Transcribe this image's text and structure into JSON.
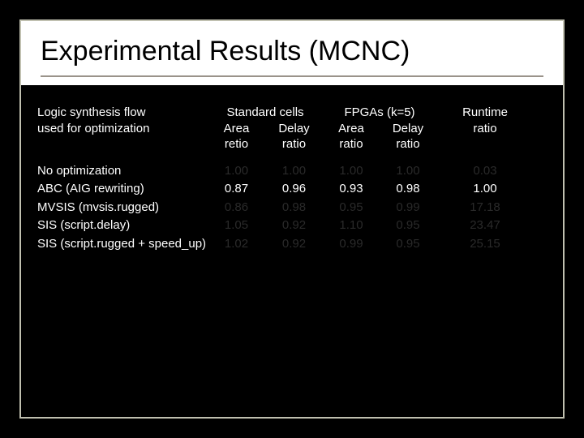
{
  "slide": {
    "title": "Experimental Results (MCNC)",
    "colors": {
      "bg": "#000000",
      "panel": "#ffffff",
      "frame": "#c0c0b0",
      "underline": "#9a938a",
      "text": "#ffffff",
      "dim": "#2a2a2a"
    }
  },
  "headers": {
    "flow_line1": "Logic synthesis flow",
    "flow_line2": "used for optimization",
    "std_title": "Standard cells",
    "std_sub1_l1": "Area",
    "std_sub1_l2": "retio",
    "std_sub2_l1": "Delay",
    "std_sub2_l2": "ratio",
    "fpga_title": "FPGAs (k=5)",
    "fpga_sub1_l1": "Area",
    "fpga_sub1_l2": "ratio",
    "fpga_sub2_l1": "Delay",
    "fpga_sub2_l2": "ratio",
    "runtime_l1": "Runtime",
    "runtime_l2": "ratio"
  },
  "rows": [
    {
      "label": "No optimization",
      "visible_values": [],
      "dim_values": [
        "1.00",
        "1.00",
        "1.00",
        "1.00",
        "0.03"
      ]
    },
    {
      "label": "ABC (AIG rewriting)",
      "visible_values": [
        "0.87",
        "0.96",
        "0.93",
        "0.98",
        "1.00"
      ],
      "dim_values": []
    },
    {
      "label": "MVSIS (mvsis.rugged)",
      "visible_values": [],
      "dim_values": [
        "0.86",
        "0.98",
        "0.95",
        "0.99",
        "17.18"
      ]
    },
    {
      "label": "SIS (script.delay)",
      "visible_values": [],
      "dim_values": [
        "1.05",
        "0.92",
        "1.10",
        "0.95",
        "23.47"
      ]
    },
    {
      "label": "SIS (script.rugged + speed_up)",
      "visible_values": [],
      "dim_values": [
        "1.02",
        "0.92",
        "0.99",
        "0.95",
        "25.15"
      ]
    }
  ],
  "fontsize": {
    "title": 34,
    "body": 15
  }
}
